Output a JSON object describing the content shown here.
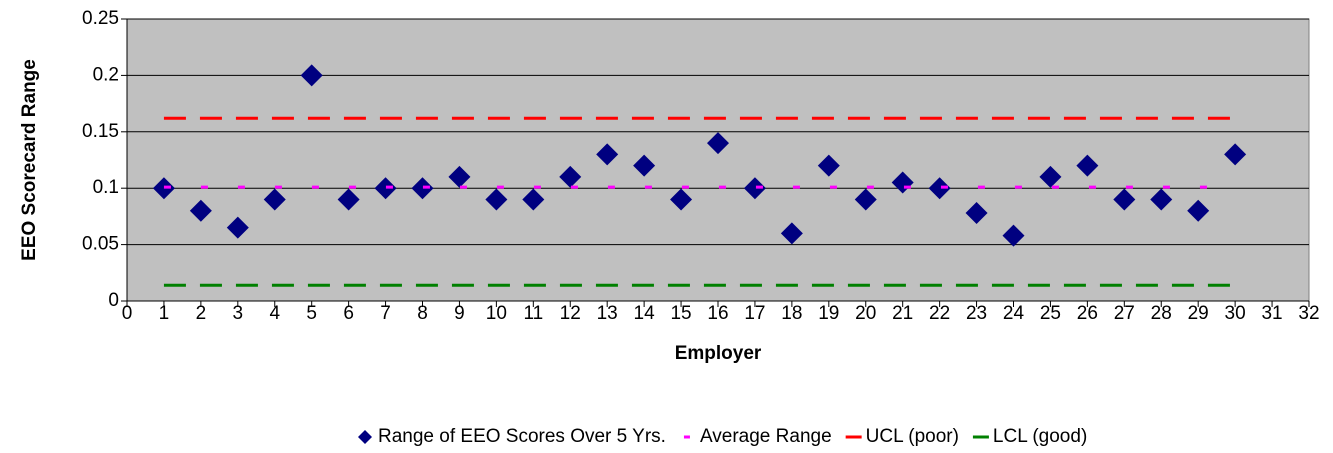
{
  "chart_data": {
    "type": "scatter",
    "x_label": "Employer",
    "y_label": "EEO Scorecard Range",
    "x": [
      1,
      2,
      3,
      4,
      5,
      6,
      7,
      8,
      9,
      10,
      11,
      12,
      13,
      14,
      15,
      16,
      17,
      18,
      19,
      20,
      21,
      22,
      23,
      24,
      25,
      26,
      27,
      28,
      29,
      30
    ],
    "series": [
      {
        "name": "Range of EEO Scores Over 5 Yrs.",
        "color": "#000080",
        "style": "marker",
        "values": [
          0.1,
          0.08,
          0.065,
          0.09,
          0.2,
          0.09,
          0.1,
          0.1,
          0.11,
          0.09,
          0.09,
          0.11,
          0.13,
          0.12,
          0.09,
          0.14,
          0.1,
          0.06,
          0.12,
          0.09,
          0.105,
          0.1,
          0.078,
          0.058,
          0.11,
          0.12,
          0.09,
          0.09,
          0.08,
          0.13
        ]
      },
      {
        "name": "Average Range",
        "color": "#ff00ff",
        "style": "dots",
        "values": [
          0.101,
          0.101,
          0.101,
          0.101,
          0.101,
          0.101,
          0.101,
          0.101,
          0.101,
          0.101,
          0.101,
          0.101,
          0.101,
          0.101,
          0.101,
          0.101,
          0.101,
          0.101,
          0.101,
          0.101,
          0.101,
          0.101,
          0.101,
          0.101,
          0.101,
          0.101,
          0.101,
          0.101,
          0.101,
          0.101
        ]
      },
      {
        "name": "UCL (poor)",
        "color": "#ff0000",
        "style": "dash",
        "values": [
          0.162,
          0.162,
          0.162,
          0.162,
          0.162,
          0.162,
          0.162,
          0.162,
          0.162,
          0.162,
          0.162,
          0.162,
          0.162,
          0.162,
          0.162,
          0.162,
          0.162,
          0.162,
          0.162,
          0.162,
          0.162,
          0.162,
          0.162,
          0.162,
          0.162,
          0.162,
          0.162,
          0.162,
          0.162,
          0.162
        ]
      },
      {
        "name": "LCL (good)",
        "color": "#008000",
        "style": "dash",
        "values": [
          0.014,
          0.014,
          0.014,
          0.014,
          0.014,
          0.014,
          0.014,
          0.014,
          0.014,
          0.014,
          0.014,
          0.014,
          0.014,
          0.014,
          0.014,
          0.014,
          0.014,
          0.014,
          0.014,
          0.014,
          0.014,
          0.014,
          0.014,
          0.014,
          0.014,
          0.014,
          0.014,
          0.014,
          0.014,
          0.014
        ]
      }
    ],
    "xlim": [
      0,
      32
    ],
    "xticks": [
      0,
      1,
      2,
      3,
      4,
      5,
      6,
      7,
      8,
      9,
      10,
      11,
      12,
      13,
      14,
      15,
      16,
      17,
      18,
      19,
      20,
      21,
      22,
      23,
      24,
      25,
      26,
      27,
      28,
      29,
      30,
      31,
      32
    ],
    "ylim": [
      0,
      0.25
    ],
    "yticks": [
      0,
      0.05,
      0.1,
      0.15,
      0.2,
      0.25
    ],
    "grid": true,
    "legend": "bottom",
    "plot_background": "#c0c0c0"
  }
}
